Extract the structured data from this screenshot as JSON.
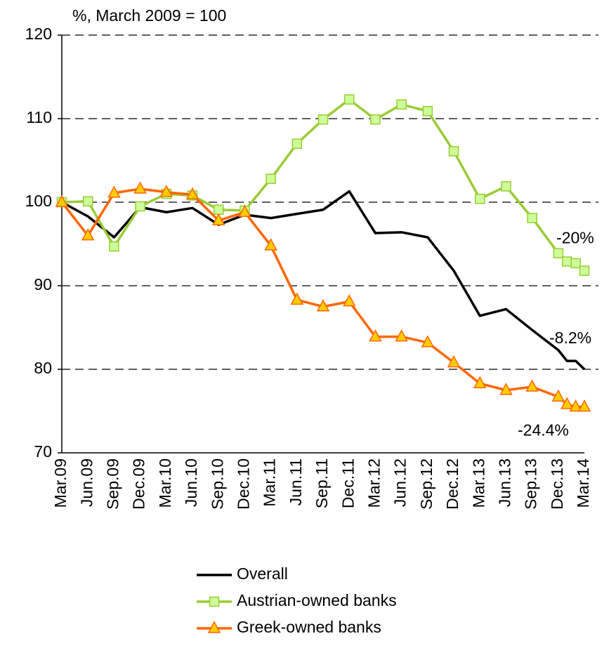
{
  "chart_data": {
    "type": "line",
    "y_label": "%, March 2009 = 100",
    "categories": [
      "Mar.09",
      "Jun.09",
      "Sep.09",
      "Dec.09",
      "Mar.10",
      "Jun.10",
      "Sep.10",
      "Dec.10",
      "Mar.11",
      "Jun.11",
      "Sep.11",
      "Dec.11",
      "Mar.12",
      "Jun.12",
      "Sep.12",
      "Dec.12",
      "Mar.13",
      "Jun.13",
      "Sep.13",
      "Dec.13",
      null,
      null,
      "Mar.14"
    ],
    "series": [
      {
        "name": "Overall",
        "color": "#000000",
        "marker": "none",
        "values": [
          100,
          98.3,
          95.8,
          99.4,
          98.8,
          99.3,
          97.3,
          98.5,
          98.1,
          98.6,
          99.1,
          101.3,
          96.3,
          96.4,
          95.8,
          91.8,
          86.4,
          87.2,
          84.7,
          82.3,
          81.0,
          81.0,
          80.0
        ]
      },
      {
        "name": "Austrian-owned banks",
        "color": "#99cc33",
        "marker": "square",
        "marker_fill": "#ccff99",
        "values": [
          100,
          100.1,
          94.7,
          99.5,
          101,
          100.8,
          99.1,
          99,
          102.8,
          107,
          109.9,
          112.3,
          109.9,
          111.7,
          110.9,
          106.1,
          100.4,
          101.9,
          98.1,
          93.9,
          92.9,
          92.7,
          91.8
        ]
      },
      {
        "name": "Greek-owned banks",
        "color": "#ff6600",
        "marker": "triangle",
        "marker_fill": "#ffcc00",
        "values": [
          100,
          96,
          101.1,
          101.6,
          101.2,
          100.9,
          97.8,
          98.8,
          94.8,
          88.3,
          87.5,
          88.1,
          83.9,
          83.9,
          83.2,
          80.8,
          78.3,
          77.5,
          77.9,
          76.7,
          75.8,
          75.5,
          75.5
        ]
      }
    ],
    "annotations": [
      "-8.2%",
      "-20%",
      "-24.4%"
    ],
    "ylim": [
      70,
      120
    ],
    "yticks": [
      70,
      80,
      90,
      100,
      110,
      120
    ],
    "grid": true
  }
}
